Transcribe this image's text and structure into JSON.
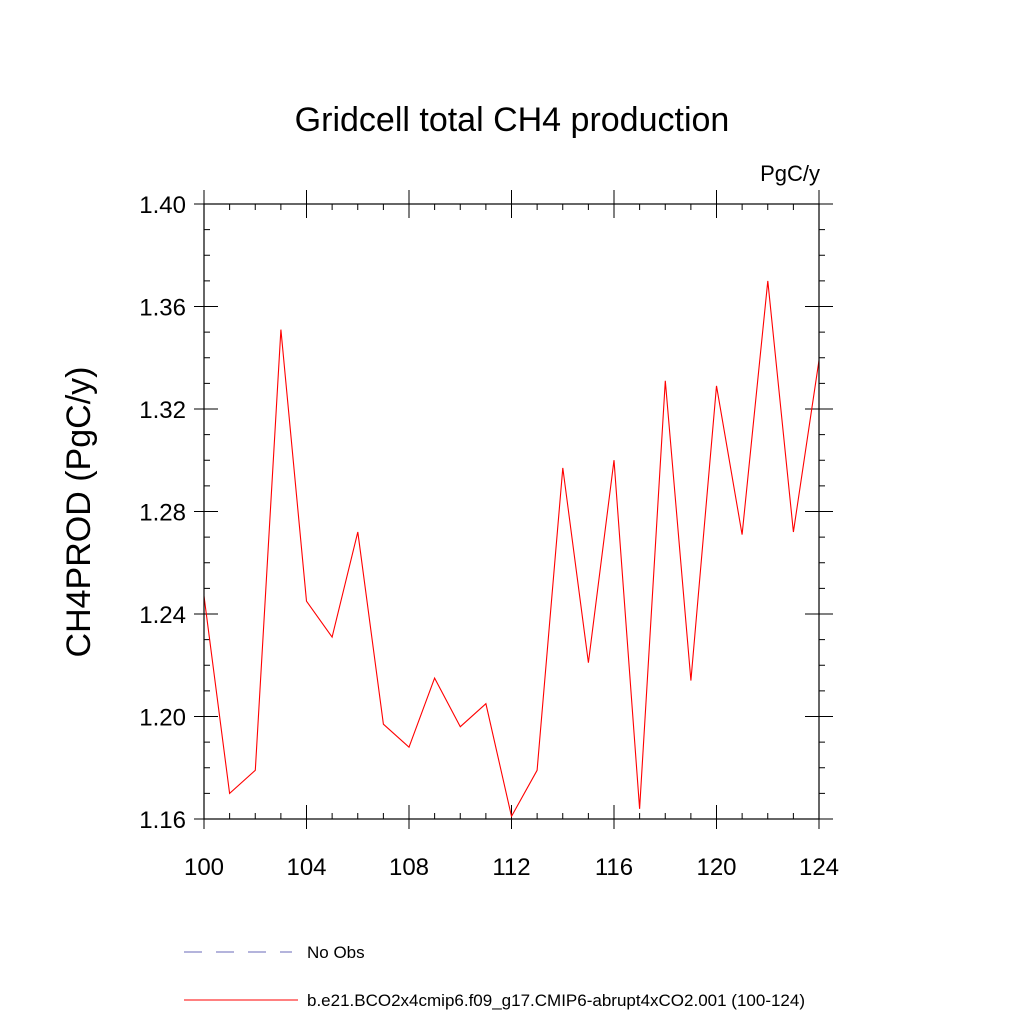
{
  "chart_data": {
    "type": "line",
    "title": "Gridcell total CH4 production",
    "units": "PgC/y",
    "xlabel": "",
    "ylabel": "CH4PROD  (PgC/y)",
    "xlim": [
      100,
      124
    ],
    "ylim": [
      1.16,
      1.4
    ],
    "xticks": [
      100,
      104,
      108,
      112,
      116,
      120,
      124
    ],
    "xtick_labels": [
      "100",
      "104",
      "108",
      "112",
      "116",
      "120",
      "124"
    ],
    "yticks": [
      1.16,
      1.2,
      1.24,
      1.28,
      1.32,
      1.36,
      1.4
    ],
    "ytick_labels": [
      "1.16",
      "1.20",
      "1.24",
      "1.28",
      "1.32",
      "1.36",
      "1.40"
    ],
    "x_minor_step": 1,
    "y_minor_step": 0.01,
    "series": [
      {
        "name": "b.e21.BCO2x4cmip6.f09_g17.CMIP6-abrupt4xCO2.001 (100-124)",
        "color": "#ff0000",
        "x": [
          100,
          101,
          102,
          103,
          104,
          105,
          106,
          107,
          108,
          109,
          110,
          111,
          112,
          113,
          114,
          115,
          116,
          117,
          118,
          119,
          120,
          121,
          122,
          123,
          124
        ],
        "values": [
          1.247,
          1.17,
          1.179,
          1.351,
          1.245,
          1.231,
          1.272,
          1.197,
          1.188,
          1.215,
          1.196,
          1.205,
          1.161,
          1.179,
          1.297,
          1.221,
          1.3,
          1.164,
          1.331,
          1.214,
          1.329,
          1.271,
          1.37,
          1.272,
          1.339
        ]
      }
    ],
    "legend": [
      {
        "label": "No Obs",
        "style": "dashed",
        "color": "#6a6ab8"
      },
      {
        "label": "b.e21.BCO2x4cmip6.f09_g17.CMIP6-abrupt4xCO2.001 (100-124)",
        "style": "solid",
        "color": "#ff0000"
      }
    ],
    "legend_position": "bottom",
    "grid": false
  }
}
